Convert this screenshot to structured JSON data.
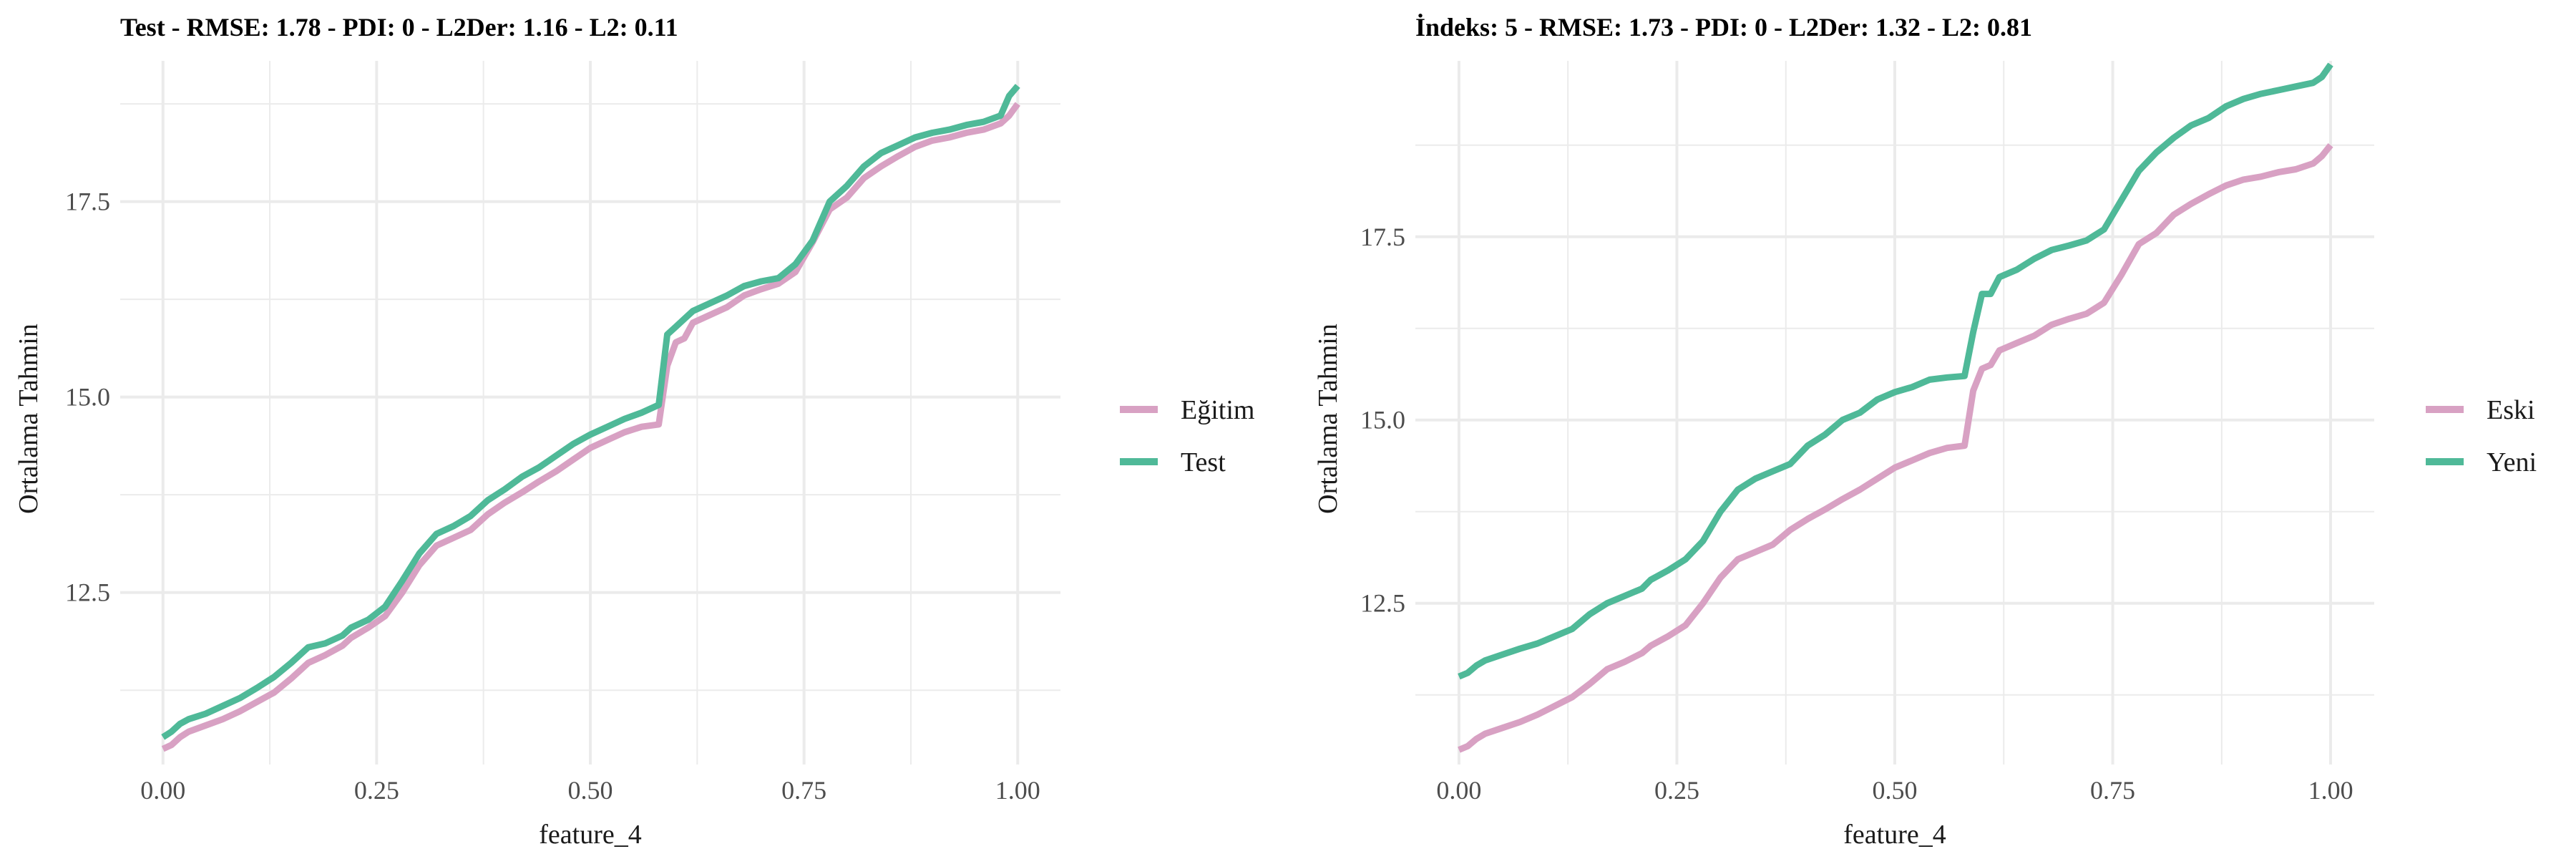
{
  "chart_data": [
    {
      "type": "line",
      "title": "Test - RMSE: 1.78 - PDI: 0 - L2Der: 1.16 - L2: 0.11",
      "xlabel": "feature_4",
      "ylabel": "Ortalama Tahmin",
      "xlim": [
        -0.05,
        1.05
      ],
      "ylim": [
        10.3,
        19.3
      ],
      "xticks": [
        0.0,
        0.25,
        0.5,
        0.75,
        1.0
      ],
      "xtick_labels": [
        "0.00",
        "0.25",
        "0.50",
        "0.75",
        "1.00"
      ],
      "yticks": [
        12.5,
        15.0,
        17.5
      ],
      "ytick_labels": [
        "12.5",
        "15.0",
        "17.5"
      ],
      "grid": true,
      "legend_position": "right",
      "series": [
        {
          "name": "Eğitim",
          "color": "#d8a1c3",
          "x": [
            0.0,
            0.01,
            0.02,
            0.03,
            0.05,
            0.07,
            0.09,
            0.11,
            0.13,
            0.15,
            0.17,
            0.19,
            0.21,
            0.22,
            0.24,
            0.26,
            0.28,
            0.3,
            0.32,
            0.34,
            0.36,
            0.38,
            0.4,
            0.42,
            0.44,
            0.46,
            0.48,
            0.5,
            0.52,
            0.54,
            0.56,
            0.58,
            0.59,
            0.6,
            0.61,
            0.62,
            0.64,
            0.66,
            0.68,
            0.7,
            0.72,
            0.74,
            0.76,
            0.78,
            0.8,
            0.82,
            0.84,
            0.86,
            0.88,
            0.9,
            0.92,
            0.94,
            0.96,
            0.98,
            0.99,
            1.0
          ],
          "y": [
            10.5,
            10.55,
            10.65,
            10.72,
            10.8,
            10.88,
            10.98,
            11.1,
            11.22,
            11.4,
            11.6,
            11.7,
            11.82,
            11.92,
            12.05,
            12.2,
            12.5,
            12.85,
            13.1,
            13.2,
            13.3,
            13.5,
            13.65,
            13.78,
            13.92,
            14.05,
            14.2,
            14.35,
            14.45,
            14.55,
            14.62,
            14.65,
            15.4,
            15.7,
            15.75,
            15.95,
            16.05,
            16.15,
            16.3,
            16.38,
            16.45,
            16.6,
            16.98,
            17.4,
            17.55,
            17.8,
            17.95,
            18.08,
            18.2,
            18.28,
            18.32,
            18.38,
            18.42,
            18.5,
            18.6,
            18.75
          ]
        },
        {
          "name": "Test",
          "color": "#4fb998",
          "x": [
            0.0,
            0.01,
            0.02,
            0.03,
            0.05,
            0.07,
            0.09,
            0.11,
            0.13,
            0.15,
            0.17,
            0.19,
            0.21,
            0.22,
            0.24,
            0.26,
            0.28,
            0.3,
            0.32,
            0.34,
            0.36,
            0.38,
            0.4,
            0.42,
            0.44,
            0.46,
            0.48,
            0.5,
            0.52,
            0.54,
            0.56,
            0.58,
            0.59,
            0.6,
            0.61,
            0.62,
            0.64,
            0.66,
            0.68,
            0.7,
            0.72,
            0.74,
            0.76,
            0.78,
            0.8,
            0.82,
            0.84,
            0.86,
            0.88,
            0.9,
            0.92,
            0.94,
            0.96,
            0.98,
            0.99,
            1.0
          ],
          "y": [
            10.65,
            10.72,
            10.82,
            10.88,
            10.95,
            11.05,
            11.15,
            11.28,
            11.42,
            11.6,
            11.8,
            11.85,
            11.95,
            12.05,
            12.15,
            12.32,
            12.65,
            13.0,
            13.25,
            13.35,
            13.48,
            13.68,
            13.82,
            13.98,
            14.1,
            14.25,
            14.4,
            14.52,
            14.62,
            14.72,
            14.8,
            14.9,
            15.8,
            15.9,
            16.0,
            16.1,
            16.2,
            16.3,
            16.42,
            16.48,
            16.52,
            16.7,
            17.0,
            17.5,
            17.7,
            17.95,
            18.12,
            18.22,
            18.32,
            18.38,
            18.42,
            18.48,
            18.52,
            18.6,
            18.85,
            18.98
          ]
        }
      ]
    },
    {
      "type": "line",
      "title": "İndeks: 5 - RMSE: 1.73 - PDI: 0 - L2Der: 1.32 - L2: 0.81",
      "xlabel": "feature_4",
      "ylabel": "Ortalama Tahmin",
      "xlim": [
        -0.05,
        1.05
      ],
      "ylim": [
        10.3,
        19.9
      ],
      "xticks": [
        0.0,
        0.25,
        0.5,
        0.75,
        1.0
      ],
      "xtick_labels": [
        "0.00",
        "0.25",
        "0.50",
        "0.75",
        "1.00"
      ],
      "yticks": [
        12.5,
        15.0,
        17.5
      ],
      "ytick_labels": [
        "12.5",
        "15.0",
        "17.5"
      ],
      "grid": true,
      "legend_position": "right",
      "series": [
        {
          "name": "Eski",
          "color": "#d8a1c3",
          "x": [
            0.0,
            0.01,
            0.02,
            0.03,
            0.05,
            0.07,
            0.09,
            0.11,
            0.13,
            0.15,
            0.17,
            0.19,
            0.21,
            0.22,
            0.24,
            0.26,
            0.28,
            0.3,
            0.32,
            0.34,
            0.36,
            0.38,
            0.4,
            0.42,
            0.44,
            0.46,
            0.48,
            0.5,
            0.52,
            0.54,
            0.56,
            0.58,
            0.59,
            0.6,
            0.61,
            0.62,
            0.64,
            0.66,
            0.68,
            0.7,
            0.72,
            0.74,
            0.76,
            0.78,
            0.8,
            0.82,
            0.84,
            0.86,
            0.88,
            0.9,
            0.92,
            0.94,
            0.96,
            0.98,
            0.99,
            1.0
          ],
          "y": [
            10.5,
            10.55,
            10.65,
            10.72,
            10.8,
            10.88,
            10.98,
            11.1,
            11.22,
            11.4,
            11.6,
            11.7,
            11.82,
            11.92,
            12.05,
            12.2,
            12.5,
            12.85,
            13.1,
            13.2,
            13.3,
            13.5,
            13.65,
            13.78,
            13.92,
            14.05,
            14.2,
            14.35,
            14.45,
            14.55,
            14.62,
            14.65,
            15.4,
            15.7,
            15.75,
            15.95,
            16.05,
            16.15,
            16.3,
            16.38,
            16.45,
            16.6,
            16.98,
            17.4,
            17.55,
            17.8,
            17.95,
            18.08,
            18.2,
            18.28,
            18.32,
            18.38,
            18.42,
            18.5,
            18.6,
            18.75
          ]
        },
        {
          "name": "Yeni",
          "color": "#4fb998",
          "x": [
            0.0,
            0.01,
            0.02,
            0.03,
            0.05,
            0.07,
            0.09,
            0.11,
            0.13,
            0.15,
            0.17,
            0.19,
            0.21,
            0.22,
            0.24,
            0.26,
            0.28,
            0.3,
            0.32,
            0.34,
            0.36,
            0.38,
            0.4,
            0.42,
            0.44,
            0.46,
            0.48,
            0.5,
            0.52,
            0.54,
            0.56,
            0.58,
            0.59,
            0.6,
            0.61,
            0.62,
            0.64,
            0.66,
            0.68,
            0.7,
            0.72,
            0.74,
            0.76,
            0.78,
            0.8,
            0.82,
            0.84,
            0.86,
            0.88,
            0.9,
            0.92,
            0.94,
            0.96,
            0.98,
            0.99,
            1.0
          ],
          "y": [
            11.5,
            11.55,
            11.65,
            11.72,
            11.8,
            11.88,
            11.95,
            12.05,
            12.15,
            12.35,
            12.5,
            12.6,
            12.7,
            12.82,
            12.95,
            13.1,
            13.35,
            13.75,
            14.05,
            14.2,
            14.3,
            14.4,
            14.65,
            14.8,
            15.0,
            15.1,
            15.28,
            15.38,
            15.45,
            15.55,
            15.58,
            15.6,
            16.2,
            16.72,
            16.72,
            16.95,
            17.05,
            17.2,
            17.32,
            17.38,
            17.45,
            17.6,
            18.0,
            18.4,
            18.65,
            18.85,
            19.02,
            19.12,
            19.28,
            19.38,
            19.45,
            19.5,
            19.55,
            19.6,
            19.68,
            19.85
          ]
        }
      ]
    }
  ]
}
